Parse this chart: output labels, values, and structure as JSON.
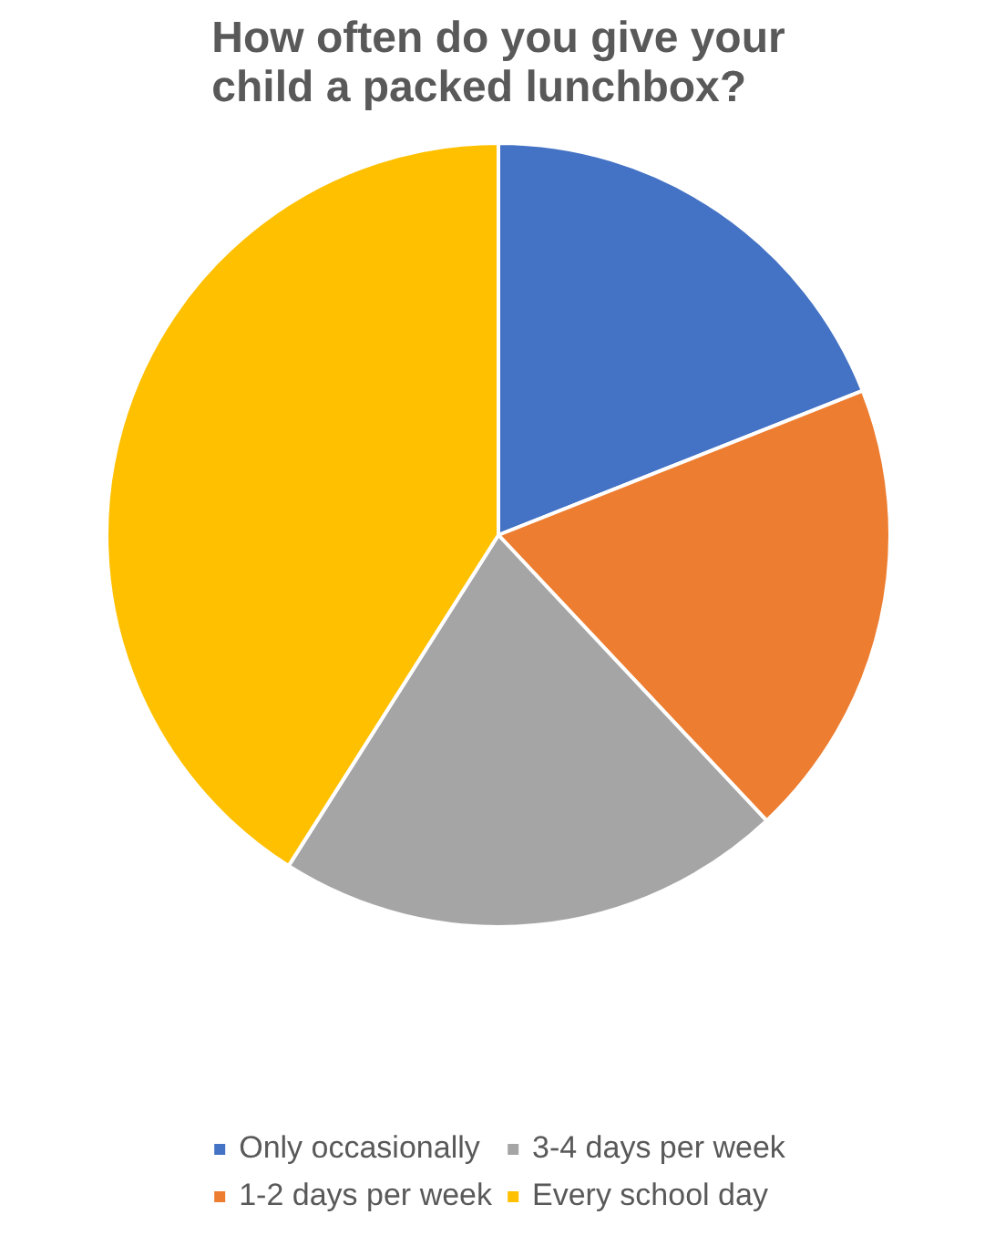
{
  "chart_data": {
    "type": "pie",
    "title": "How often do you give your child a packed lunchbox?",
    "categories": [
      "Only occasionally",
      "1-2 days per week",
      "3-4 days per week",
      "Every school day"
    ],
    "values": [
      19,
      19,
      21,
      41
    ],
    "colors": [
      "#4472c4",
      "#ed7d31",
      "#a5a5a5",
      "#ffc000"
    ],
    "legend": "bottom"
  }
}
